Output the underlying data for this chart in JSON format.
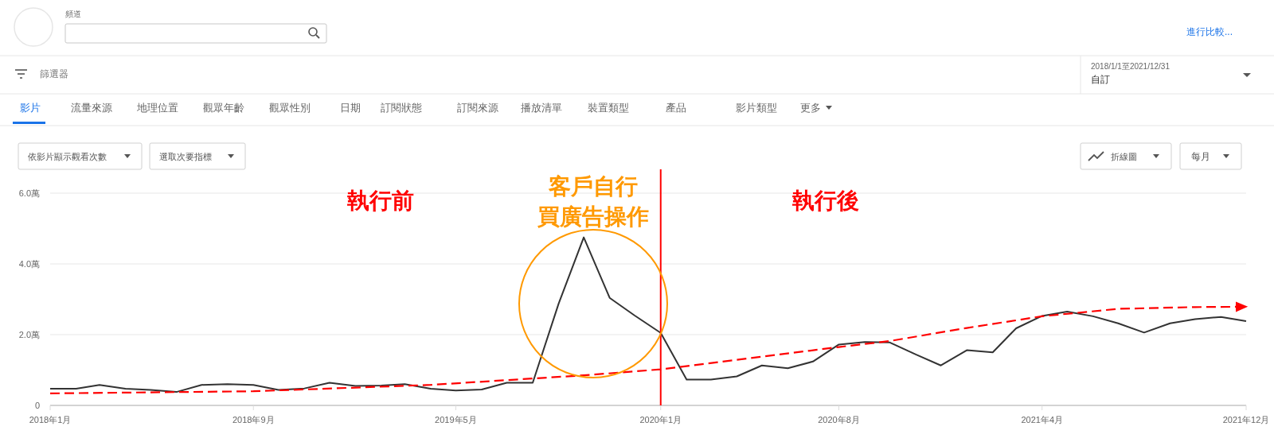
{
  "chart_data": {
    "type": "line",
    "x": [
      "2018-01",
      "2018-02",
      "2018-03",
      "2018-04",
      "2018-05",
      "2018-06",
      "2018-07",
      "2018-08",
      "2018-09",
      "2018-10",
      "2018-11",
      "2018-12",
      "2019-01",
      "2019-02",
      "2019-03",
      "2019-04",
      "2019-05",
      "2019-06",
      "2019-07",
      "2019-08",
      "2019-09",
      "2019-10",
      "2019-11",
      "2019-12",
      "2020-01",
      "2020-02",
      "2020-03",
      "2020-04",
      "2020-05",
      "2020-06",
      "2020-07",
      "2020-08",
      "2020-09",
      "2020-10",
      "2020-11",
      "2020-12",
      "2021-01",
      "2021-02",
      "2021-03",
      "2021-04",
      "2021-05",
      "2021-06",
      "2021-07",
      "2021-08",
      "2021-09",
      "2021-10",
      "2021-11",
      "2021-12"
    ],
    "series": [
      {
        "color": "#333333",
        "line_style": "solid",
        "values": [
          0.47,
          0.47,
          0.58,
          0.47,
          0.44,
          0.38,
          0.58,
          0.6,
          0.58,
          0.44,
          0.48,
          0.64,
          0.55,
          0.56,
          0.6,
          0.47,
          0.42,
          0.45,
          0.64,
          0.64,
          2.88,
          4.75,
          3.04,
          2.54,
          2.05,
          0.73,
          0.73,
          0.82,
          1.13,
          1.05,
          1.24,
          1.72,
          1.79,
          1.78,
          1.44,
          1.13,
          1.56,
          1.5,
          2.18,
          2.53,
          2.65,
          2.52,
          2.32,
          2.06,
          2.32,
          2.44,
          2.5,
          2.38
        ]
      },
      {
        "color": "#ff0000",
        "line_style": "dashed",
        "x": [
          "2018-01",
          "2018-09",
          "2019-04",
          "2019-10",
          "2020-01",
          "2020-08",
          "2020-10",
          "2021-01",
          "2021-04",
          "2021-07",
          "2021-10",
          "2021-12"
        ],
        "values": [
          0.34,
          0.4,
          0.58,
          0.85,
          1.02,
          1.65,
          1.82,
          2.19,
          2.52,
          2.73,
          2.78,
          2.79
        ]
      }
    ],
    "xlim": [
      "2018-01",
      "2021-12"
    ],
    "xticks": [
      {
        "value": "2018-01",
        "label": "2018年1月"
      },
      {
        "value": "2018-09",
        "label": "2018年9月"
      },
      {
        "value": "2019-05",
        "label": "2019年5月"
      },
      {
        "value": "2020-01",
        "label": "2020年1月"
      },
      {
        "value": "2020-08",
        "label": "2020年8月"
      },
      {
        "value": "2021-04",
        "label": "2021年4月"
      },
      {
        "value": "2021-12",
        "label": "2021年12月"
      }
    ],
    "ylim": [
      0,
      6
    ],
    "yticks": [
      0,
      {
        "value": 2,
        "label": "2.0萬"
      },
      {
        "value": 4,
        "label": "4.0萬"
      },
      {
        "value": 6,
        "label": "6.0萬"
      }
    ],
    "grid": "y",
    "legend": false,
    "marker": "none",
    "ref_lines": [
      {
        "axis": "x",
        "value": "2020-01",
        "color": "#ff0000",
        "line_style": "solid"
      }
    ],
    "annotations": [
      "執行前",
      "客戶自行買廣告操作",
      "執行後",
      "頻道",
      "進行比較...",
      "篩選器",
      "2018/1/1至2021/12/31",
      "自訂",
      "影片",
      "流量來源",
      "地理位置",
      "觀眾年齡",
      "觀眾性別",
      "日期",
      "訂閱狀態",
      "訂閱來源",
      "播放清單",
      "裝置類型",
      "產品",
      "影片類型",
      "更多",
      "依影片顯示觀看次數",
      "選取次要指標",
      "折線圖",
      "每月"
    ]
  }
}
